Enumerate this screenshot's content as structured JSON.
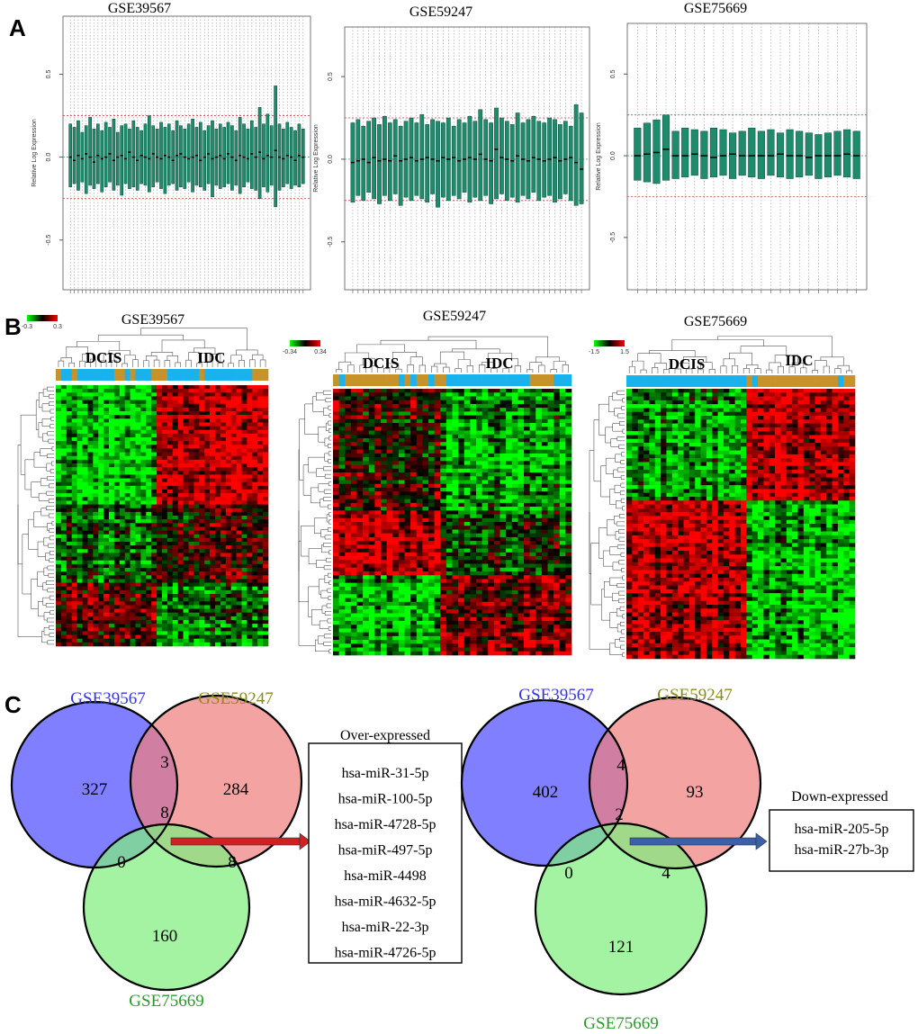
{
  "panels": [
    {
      "label": "A",
      "plots": [
        {
          "type": "box",
          "title": "GSE39567",
          "ylabel": "Relative Log Expression",
          "ylim": [
            -0.8,
            0.85
          ],
          "yticks": [
            -0.5,
            {
              "value": 0,
              "label": "0.0"
            },
            0.5
          ],
          "ref_lines": [
            -0.25,
            0.25
          ],
          "box_color": "#1e8c6c",
          "ref_color": "#e04040",
          "q3": [
            0.2,
            0.18,
            0.22,
            0.15,
            0.19,
            0.24,
            0.17,
            0.2,
            0.16,
            0.21,
            0.18,
            0.23,
            0.15,
            0.19,
            0.2,
            0.17,
            0.22,
            0.18,
            0.16,
            0.2,
            0.25,
            0.19,
            0.17,
            0.21,
            0.18,
            0.2,
            0.16,
            0.22,
            0.19,
            0.17,
            0.2,
            0.23,
            0.18,
            0.21,
            0.16,
            0.19,
            0.22,
            0.17,
            0.2,
            0.18,
            0.21,
            0.19,
            0.16,
            0.24,
            0.2,
            0.17,
            0.22,
            0.18,
            0.3,
            0.2,
            0.26,
            0.19,
            0.43,
            0.2,
            0.17,
            0.21,
            0.18,
            0.16,
            0.2,
            0.17
          ],
          "median": [
            0,
            -0.02,
            0.01,
            -0.01,
            0.02,
            0,
            -0.03,
            0.01,
            -0.01,
            0,
            0.02,
            -0.02,
            0,
            0.01,
            -0.01,
            0.03,
            0,
            -0.02,
            0.01,
            0,
            -0.01,
            0.02,
            0,
            -0.01,
            0.01,
            0,
            -0.02,
            0.01,
            0.02,
            0,
            -0.01,
            0,
            0.01,
            -0.02,
            0,
            0.02,
            -0.01,
            0,
            0.01,
            -0.01,
            0.02,
            0,
            -0.02,
            0.01,
            0,
            -0.01,
            0.02,
            0,
            0.03,
            -0.01,
            0.01,
            0,
            0.04,
            0,
            -0.01,
            0.01,
            0,
            -0.02,
            0.01,
            0
          ],
          "q1": [
            -0.18,
            -0.16,
            -0.2,
            -0.15,
            -0.22,
            -0.17,
            -0.19,
            -0.16,
            -0.21,
            -0.18,
            -0.15,
            -0.2,
            -0.17,
            -0.23,
            -0.16,
            -0.19,
            -0.18,
            -0.2,
            -0.16,
            -0.17,
            -0.21,
            -0.18,
            -0.15,
            -0.19,
            -0.22,
            -0.17,
            -0.16,
            -0.2,
            -0.18,
            -0.19,
            -0.15,
            -0.21,
            -0.17,
            -0.18,
            -0.2,
            -0.16,
            -0.24,
            -0.17,
            -0.19,
            -0.18,
            -0.16,
            -0.2,
            -0.17,
            -0.22,
            -0.18,
            -0.15,
            -0.19,
            -0.2,
            -0.25,
            -0.18,
            -0.21,
            -0.17,
            -0.3,
            -0.2,
            -0.18,
            -0.16,
            -0.19,
            -0.17,
            -0.18,
            -0.16
          ]
        },
        {
          "type": "box",
          "title": "GSE59247",
          "ylabel": "Relative Log Expression",
          "ylim": [
            -0.79,
            0.8
          ],
          "yticks": [
            -0.5,
            {
              "value": 0,
              "label": "0.0"
            },
            0.5
          ],
          "ref_lines": [
            -0.25,
            0.25
          ],
          "box_color": "#1e8c6c",
          "ref_color": "#e04040",
          "q3": [
            0.22,
            0.24,
            0.2,
            0.23,
            0.25,
            0.21,
            0.26,
            0.22,
            0.24,
            0.2,
            0.23,
            0.25,
            0.22,
            0.27,
            0.21,
            0.24,
            0.23,
            0.22,
            0.25,
            0.2,
            0.24,
            0.22,
            0.26,
            0.23,
            0.3,
            0.24,
            0.22,
            0.31,
            0.25,
            0.23,
            0.21,
            0.28,
            0.22,
            0.24,
            0.26,
            0.23,
            0.22,
            0.25,
            0.24,
            0.21,
            0.23,
            0.2,
            0.33,
            0.28
          ],
          "median": [
            -0.02,
            -0.01,
            0,
            -0.02,
            0.01,
            -0.01,
            0,
            -0.01,
            0.02,
            -0.01,
            0,
            0.01,
            -0.01,
            0,
            0.01,
            0,
            -0.01,
            0.01,
            0,
            0.01,
            -0.01,
            0,
            0.01,
            0,
            0.03,
            0,
            -0.01,
            0.06,
            0.01,
            0,
            -0.01,
            0.02,
            0,
            -0.01,
            0.01,
            0,
            -0.01,
            0,
            0.01,
            -0.01,
            0,
            0.01,
            -0.02,
            -0.06
          ],
          "q1": [
            -0.26,
            -0.22,
            -0.25,
            -0.2,
            -0.24,
            -0.27,
            -0.22,
            -0.25,
            -0.21,
            -0.28,
            -0.23,
            -0.25,
            -0.22,
            -0.24,
            -0.26,
            -0.21,
            -0.29,
            -0.23,
            -0.25,
            -0.22,
            -0.24,
            -0.2,
            -0.26,
            -0.23,
            -0.25,
            -0.22,
            -0.27,
            -0.24,
            -0.21,
            -0.25,
            -0.23,
            -0.26,
            -0.22,
            -0.24,
            -0.2,
            -0.25,
            -0.23,
            -0.22,
            -0.26,
            -0.24,
            -0.21,
            -0.25,
            -0.28,
            -0.27
          ]
        },
        {
          "type": "box",
          "title": "GSE75669",
          "ylabel": "Relative Log Expression",
          "ylim": [
            -0.82,
            0.81
          ],
          "yticks": [
            -0.5,
            {
              "value": 0,
              "label": "0.0"
            },
            0.5
          ],
          "ref_lines": [
            -0.25,
            0.25
          ],
          "box_color": "#1e8c6c",
          "ref_color": "#e04040",
          "q3": [
            0.17,
            0.2,
            0.22,
            0.25,
            0.15,
            0.17,
            0.16,
            0.15,
            0.17,
            0.16,
            0.14,
            0.15,
            0.17,
            0.15,
            0.16,
            0.14,
            0.16,
            0.15,
            0.14,
            0.13,
            0.14,
            0.15,
            0.16,
            0.15
          ],
          "median": [
            0,
            0.01,
            0.02,
            0.04,
            0,
            0,
            0.01,
            0,
            -0.01,
            0,
            0.01,
            0,
            0,
            0,
            0,
            0.01,
            0,
            0,
            -0.01,
            0,
            0,
            0,
            0.01,
            0
          ],
          "q1": [
            -0.15,
            -0.16,
            -0.17,
            -0.15,
            -0.14,
            -0.13,
            -0.12,
            -0.14,
            -0.13,
            -0.12,
            -0.14,
            -0.12,
            -0.13,
            -0.14,
            -0.12,
            -0.13,
            -0.14,
            -0.13,
            -0.12,
            -0.14,
            -0.13,
            -0.12,
            -0.13,
            -0.14
          ]
        }
      ]
    },
    {
      "label": "B",
      "heatmaps": [
        {
          "title": "GSE39567",
          "colorbar": [
            -0.3,
            0.3
          ],
          "groups": [
            "DCIS",
            "IDC"
          ]
        },
        {
          "title": "GSE59247",
          "colorbar": [
            -0.34,
            0.34
          ],
          "groups": [
            "DCIS",
            "IDC"
          ]
        },
        {
          "title": "GSE75669",
          "colorbar": [
            -1.5,
            1.5
          ],
          "groups": [
            "DCIS",
            "IDC"
          ]
        }
      ]
    },
    {
      "label": "C",
      "venns": [
        {
          "sets": [
            "GSE39567",
            "GSE59247",
            "GSE75669"
          ],
          "regions": [
            327,
            3,
            284,
            8,
            0,
            8,
            160
          ],
          "list_title": "Over-expressed",
          "list": [
            "hsa-miR-31-5p",
            "hsa-miR-100-5p",
            "hsa-miR-4728-5p",
            "hsa-miR-497-5p",
            "hsa-miR-4498",
            "hsa-miR-4632-5p",
            "hsa-miR-22-3p",
            "hsa-miR-4726-5p"
          ]
        },
        {
          "sets": [
            "GSE39567",
            "GSE59247",
            "GSE75669"
          ],
          "regions": [
            402,
            4,
            93,
            2,
            0,
            4,
            121
          ],
          "list_title": "Down-expressed",
          "list": [
            "hsa-miR-205-5p",
            "hsa-miR-27b-3p"
          ]
        }
      ]
    }
  ]
}
